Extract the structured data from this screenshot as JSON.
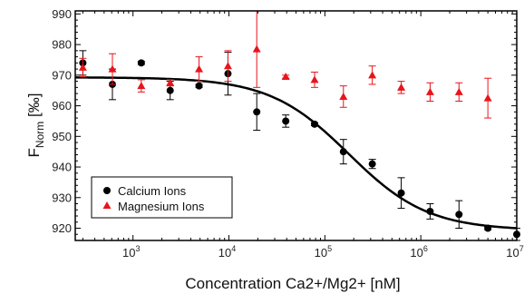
{
  "chart_data": {
    "type": "scatter",
    "title": "",
    "xlabel": "Concentration Ca2+/Mg2+ [nM]",
    "ylabel": {
      "main": "F",
      "sub": "Norm",
      "unit": " [‰]"
    },
    "xscale": "log",
    "xlim": [
      250,
      10000000
    ],
    "ylim": [
      916,
      991
    ],
    "x_ticks": [
      {
        "value": 1000,
        "base": "10",
        "exp": "3"
      },
      {
        "value": 10000,
        "base": "10",
        "exp": "4"
      },
      {
        "value": 100000,
        "base": "10",
        "exp": "5"
      },
      {
        "value": 1000000,
        "base": "10",
        "exp": "6"
      },
      {
        "value": 10000000,
        "base": "10",
        "exp": "7"
      }
    ],
    "y_ticks": [
      920,
      930,
      940,
      950,
      960,
      970,
      980,
      990
    ],
    "legend_position": "lower-left",
    "series": [
      {
        "name": "Calcium Ions",
        "marker": "circle",
        "color": "#000000",
        "points": [
          {
            "x": 300,
            "y": 974,
            "err": 4
          },
          {
            "x": 610,
            "y": 967,
            "err": 5
          },
          {
            "x": 1220,
            "y": 974,
            "err": 0.5
          },
          {
            "x": 2440,
            "y": 965,
            "err": 3
          },
          {
            "x": 4880,
            "y": 966.5,
            "err": 0.5
          },
          {
            "x": 9770,
            "y": 970.5,
            "err": 7
          },
          {
            "x": 19500,
            "y": 958,
            "err": 6
          },
          {
            "x": 39100,
            "y": 955,
            "err": 2
          },
          {
            "x": 78100,
            "y": 954,
            "err": 0.5
          },
          {
            "x": 156000,
            "y": 945,
            "err": 4
          },
          {
            "x": 312000,
            "y": 941,
            "err": 1.5
          },
          {
            "x": 625000,
            "y": 931.5,
            "err": 5
          },
          {
            "x": 1250000,
            "y": 925.5,
            "err": 2.5
          },
          {
            "x": 2500000,
            "y": 924.5,
            "err": 4.5
          },
          {
            "x": 5000000,
            "y": 920,
            "err": 0.5
          },
          {
            "x": 10000000,
            "y": 918,
            "err": 2
          }
        ]
      },
      {
        "name": "Magnesium Ions",
        "marker": "triangle",
        "color": "#e8141b",
        "points": [
          {
            "x": 300,
            "y": 972.5,
            "err": 3
          },
          {
            "x": 610,
            "y": 972,
            "err": 5
          },
          {
            "x": 1220,
            "y": 966.5,
            "err": 2
          },
          {
            "x": 2440,
            "y": 967.5,
            "err": 1
          },
          {
            "x": 4880,
            "y": 972,
            "err": 4
          },
          {
            "x": 9770,
            "y": 973,
            "err": 5
          },
          {
            "x": 19500,
            "y": 978.5,
            "err": 12.5
          },
          {
            "x": 39100,
            "y": 969.5,
            "err": 0.5
          },
          {
            "x": 78100,
            "y": 968.5,
            "err": 2.5
          },
          {
            "x": 156000,
            "y": 963,
            "err": 3.5
          },
          {
            "x": 312000,
            "y": 970,
            "err": 3
          },
          {
            "x": 625000,
            "y": 966,
            "err": 2
          },
          {
            "x": 1250000,
            "y": 964.5,
            "err": 3
          },
          {
            "x": 2500000,
            "y": 964.5,
            "err": 3
          },
          {
            "x": 5000000,
            "y": 962.5,
            "err": 6.5
          }
        ]
      }
    ],
    "fit": {
      "series": "Calcium Ions",
      "color": "#000000",
      "model": "sigmoid",
      "top": 969.3,
      "bottom": 919.3,
      "ec50": 177000,
      "hill": 1.05
    }
  }
}
